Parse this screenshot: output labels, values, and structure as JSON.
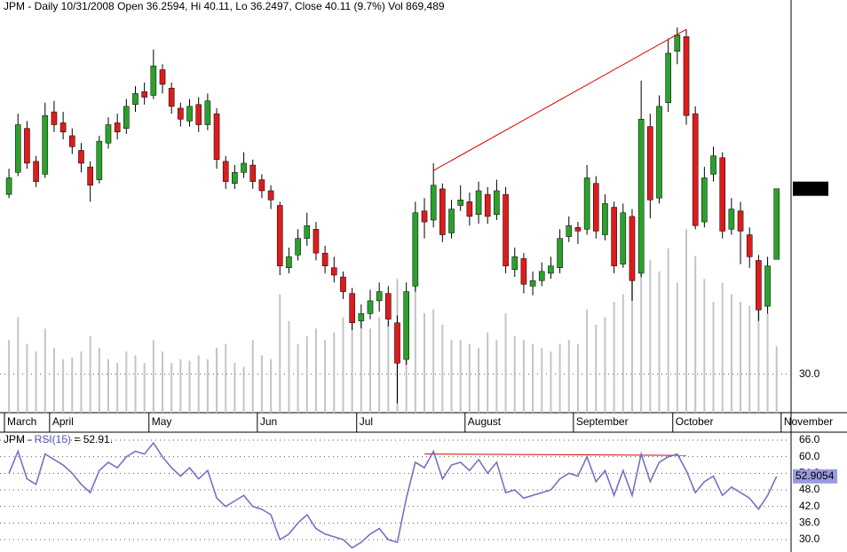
{
  "chart_data": [
    {
      "type": "candlestick",
      "title": "JPM - Daily 10/31/2008 Open 36.2594, Hi 40.11, Lo 36.2497, Close 40.11 (9.7%) Vol 869,489",
      "categories": [
        "March",
        null,
        null,
        null,
        null,
        "April",
        null,
        null,
        null,
        null,
        null,
        null,
        null,
        null,
        null,
        null,
        "May",
        null,
        null,
        null,
        null,
        null,
        null,
        null,
        null,
        null,
        null,
        null,
        "Jun",
        null,
        null,
        null,
        null,
        null,
        null,
        null,
        null,
        null,
        null,
        "Jul",
        null,
        null,
        null,
        null,
        null,
        null,
        null,
        null,
        null,
        null,
        null,
        "August",
        null,
        null,
        null,
        null,
        null,
        null,
        null,
        null,
        null,
        null,
        null,
        "September",
        null,
        null,
        null,
        null,
        null,
        null,
        null,
        null,
        null,
        null,
        "October",
        null,
        null,
        null,
        null,
        null,
        null,
        null,
        null,
        null,
        null,
        null,
        "November"
      ],
      "open": [
        39.8,
        41.0,
        43.4,
        41.6,
        40.9,
        44.3,
        43.7,
        43.0,
        42.2,
        41.3,
        40.6,
        42.6,
        43.7,
        43.4,
        44.7,
        45.4,
        45.2,
        46.6,
        45.6,
        44.5,
        43.8,
        44.7,
        43.6,
        44.2,
        41.6,
        40.4,
        41.0,
        41.4,
        40.6,
        40.0,
        39.2,
        35.8,
        36.5,
        37.4,
        37.9,
        36.6,
        35.8,
        35.3,
        34.4,
        32.9,
        33.3,
        34.0,
        34.4,
        32.8,
        30.8,
        34.8,
        38.9,
        38.4,
        40.1,
        37.7,
        39.2,
        39.4,
        38.7,
        39.8,
        38.7,
        39.8,
        35.7,
        36.3,
        34.8,
        35.1,
        35.5,
        35.8,
        37.5,
        38.0,
        37.9,
        40.4,
        37.6,
        39.1,
        36.0,
        38.6,
        35.5,
        43.5,
        39.6,
        44.8,
        47.6,
        48.4,
        44.2,
        38.3,
        40.9,
        41.8,
        37.9,
        38.9,
        37.6,
        36.2,
        33.7,
        36.2594,
        null
      ],
      "high": [
        41.2,
        44.2,
        43.8,
        41.9,
        44.8,
        44.9,
        44.3,
        43.4,
        42.6,
        41.6,
        43.0,
        44.0,
        44.2,
        45.0,
        45.7,
        45.9,
        47.7,
        46.9,
        45.9,
        44.8,
        45.0,
        45.1,
        45.3,
        44.5,
        41.9,
        41.4,
        42.1,
        41.7,
        40.9,
        40.3,
        39.4,
        36.9,
        37.9,
        38.8,
        38.3,
        37.0,
        36.4,
        35.6,
        34.7,
        33.8,
        34.6,
        35.0,
        34.8,
        33.2,
        35.0,
        39.4,
        39.6,
        41.5,
        40.4,
        39.5,
        40.3,
        39.9,
        40.5,
        40.2,
        40.6,
        40.2,
        36.9,
        36.6,
        35.6,
        36.1,
        36.4,
        37.9,
        38.6,
        38.3,
        41.4,
        40.8,
        39.8,
        39.4,
        39.3,
        39.0,
        46.0,
        44.2,
        45.2,
        48.3,
        48.9,
        48.8,
        44.6,
        41.3,
        42.4,
        42.1,
        39.6,
        39.4,
        38.0,
        36.5,
        36.4,
        40.11,
        null
      ],
      "low": [
        39.6,
        40.8,
        41.2,
        40.2,
        40.7,
        43.2,
        42.8,
        42.0,
        41.0,
        39.4,
        40.4,
        42.3,
        42.8,
        43.1,
        44.3,
        44.7,
        45.0,
        45.3,
        44.2,
        43.5,
        43.5,
        43.2,
        43.3,
        41.2,
        40.1,
        40.1,
        40.7,
        40.1,
        39.6,
        39.0,
        35.4,
        35.5,
        36.2,
        37.0,
        36.2,
        35.5,
        35.0,
        34.1,
        32.4,
        32.5,
        33.0,
        33.4,
        32.6,
        28.4,
        30.5,
        34.5,
        37.4,
        38.0,
        37.2,
        37.4,
        38.9,
        38.1,
        38.2,
        38.2,
        38.4,
        35.5,
        35.3,
        34.4,
        34.3,
        34.8,
        35.2,
        35.5,
        37.2,
        37.1,
        37.6,
        37.4,
        37.3,
        35.5,
        35.8,
        34.0,
        35.3,
        38.5,
        39.3,
        44.3,
        46.9,
        43.6,
        37.9,
        38.0,
        40.5,
        37.4,
        37.6,
        36.0,
        35.8,
        32.9,
        33.3,
        36.2497,
        null
      ],
      "close": [
        40.7,
        43.6,
        41.5,
        40.5,
        44.1,
        43.6,
        43.2,
        42.4,
        41.5,
        40.3,
        42.7,
        43.6,
        43.2,
        44.6,
        45.3,
        45.1,
        46.8,
        45.8,
        44.6,
        43.9,
        44.6,
        43.6,
        44.9,
        41.7,
        40.5,
        41.0,
        41.5,
        40.5,
        40.0,
        39.5,
        35.9,
        36.4,
        37.4,
        38.1,
        36.6,
        35.9,
        35.4,
        34.5,
        32.8,
        33.3,
        34.0,
        34.5,
        33.0,
        30.6,
        34.5,
        38.8,
        38.3,
        40.3,
        37.6,
        39.0,
        39.5,
        38.6,
        40.0,
        38.6,
        40.0,
        35.9,
        36.4,
        34.9,
        35.1,
        35.6,
        35.9,
        37.4,
        38.1,
        37.8,
        40.7,
        37.8,
        39.3,
        35.9,
        38.8,
        35.1,
        43.9,
        39.5,
        44.6,
        47.5,
        48.5,
        44.1,
        38.1,
        40.7,
        41.9,
        37.8,
        39.0,
        37.8,
        36.4,
        33.5,
        35.9,
        40.11,
        null
      ],
      "volume": [
        950000,
        1250000,
        900000,
        800000,
        1100000,
        850000,
        700000,
        720000,
        800000,
        1000000,
        850000,
        700000,
        650000,
        800000,
        750000,
        650000,
        950000,
        800000,
        650000,
        700000,
        680000,
        750000,
        700000,
        850000,
        900000,
        650000,
        600000,
        950000,
        750000,
        700000,
        1550000,
        1200000,
        900000,
        1000000,
        1100000,
        950000,
        1050000,
        1250000,
        1550000,
        1200000,
        1100000,
        1250000,
        1200000,
        1750000,
        1550000,
        1950000,
        1300000,
        1350000,
        1150000,
        950000,
        950000,
        900000,
        850000,
        1050000,
        950000,
        1300000,
        1000000,
        950000,
        900000,
        850000,
        800000,
        900000,
        950000,
        900000,
        1350000,
        1150000,
        1250000,
        1450000,
        1550000,
        2050000,
        2700000,
        2000000,
        1850000,
        2150000,
        1700000,
        2400000,
        2050000,
        1750000,
        1450000,
        1700000,
        1550000,
        1450000,
        1400000,
        1600000,
        1300000,
        869489,
        null
      ],
      "ylim": [
        27.9,
        50.4
      ],
      "yticks": [
        {
          "value": 30,
          "label": "30.0"
        }
      ],
      "volume_lim": [
        0,
        5400000
      ],
      "up_color": "#2ca02c",
      "down_color": "#dd1c1c",
      "volume_color": "#c4c4c4",
      "trendline": {
        "x": [
          47,
          75
        ],
        "y": [
          41.1,
          48.8
        ],
        "color": "#dd0000"
      },
      "grid": true
    },
    {
      "type": "line",
      "title_parts": [
        "JPM - ",
        "RSI(15)",
        " = 52.91."
      ],
      "values": [
        54,
        62,
        52,
        50,
        61,
        59,
        57,
        54,
        50,
        47,
        55,
        58,
        56,
        60,
        62,
        61,
        65,
        60,
        56,
        53,
        56,
        52,
        55,
        45,
        42,
        44,
        46,
        42,
        41,
        39,
        30,
        32,
        36,
        39,
        34,
        32,
        31,
        30,
        27,
        29,
        32,
        34,
        30,
        29,
        45,
        58,
        56,
        62,
        52,
        57,
        58,
        55,
        59,
        54,
        58,
        47,
        48,
        45,
        46,
        47,
        48,
        52,
        54,
        53,
        60,
        51,
        55,
        46,
        55,
        46,
        61,
        51,
        58,
        60,
        61,
        55,
        47,
        51,
        53,
        46,
        49,
        47,
        45,
        41,
        46,
        52.9054,
        null
      ],
      "color": "#7373c2",
      "ylim": [
        25.5,
        68.9
      ],
      "yticks": [
        {
          "value": 66,
          "label": "66.0"
        },
        {
          "value": 60,
          "label": "60.0"
        },
        {
          "value": 54,
          "label": "54.0"
        },
        {
          "value": 48,
          "label": "48.0"
        },
        {
          "value": 42,
          "label": "42.0"
        },
        {
          "value": 36,
          "label": "36.0"
        },
        {
          "value": 30,
          "label": "30.0"
        }
      ],
      "trendline": {
        "x": [
          46,
          75
        ],
        "y": [
          61,
          60.5
        ],
        "color": "#dd0000"
      },
      "grid": true
    }
  ]
}
